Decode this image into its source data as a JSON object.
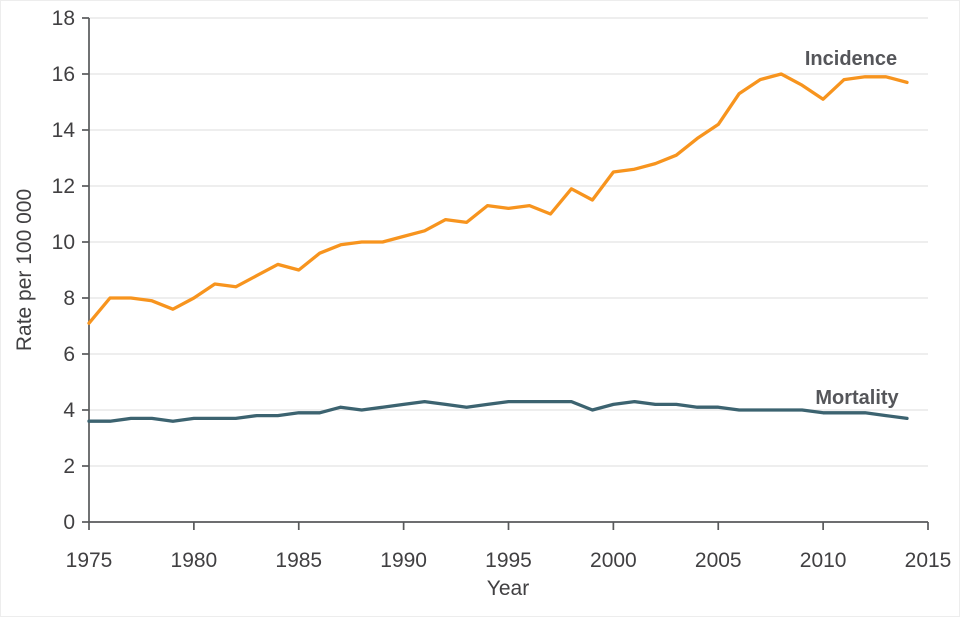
{
  "figure": {
    "description": "Line chart of incidence and mortality rates per 100 000 by year, 1975-2014"
  },
  "chart_data": {
    "type": "line",
    "title": "",
    "xlabel": "Year",
    "ylabel": "Rate per 100 000",
    "xlim": [
      1975,
      2015
    ],
    "ylim": [
      0,
      18
    ],
    "xticks": [
      1975,
      1980,
      1985,
      1990,
      1995,
      2000,
      2005,
      2010,
      2015
    ],
    "yticks": [
      0,
      2,
      4,
      6,
      8,
      10,
      12,
      14,
      16,
      18
    ],
    "grid": "horizontal",
    "legend": "inline-end-labels",
    "x": [
      1975,
      1976,
      1977,
      1978,
      1979,
      1980,
      1981,
      1982,
      1983,
      1984,
      1985,
      1986,
      1987,
      1988,
      1989,
      1990,
      1991,
      1992,
      1993,
      1994,
      1995,
      1996,
      1997,
      1998,
      1999,
      2000,
      2001,
      2002,
      2003,
      2004,
      2005,
      2006,
      2007,
      2008,
      2009,
      2010,
      2011,
      2012,
      2013,
      2014
    ],
    "series": [
      {
        "name": "Incidence",
        "color": "#F7941E",
        "values": [
          7.1,
          8.0,
          8.0,
          7.9,
          7.6,
          8.0,
          8.5,
          8.4,
          8.8,
          9.2,
          9.0,
          9.6,
          9.9,
          10.0,
          10.0,
          10.2,
          10.4,
          10.8,
          10.7,
          11.3,
          11.2,
          11.3,
          11.0,
          11.9,
          11.5,
          12.5,
          12.6,
          12.8,
          13.1,
          13.7,
          14.2,
          15.3,
          15.8,
          16.0,
          15.6,
          15.1,
          15.8,
          15.9,
          15.9,
          15.7
        ]
      },
      {
        "name": "Mortality",
        "color": "#3C6370",
        "values": [
          3.6,
          3.6,
          3.7,
          3.7,
          3.6,
          3.7,
          3.7,
          3.7,
          3.8,
          3.8,
          3.9,
          3.9,
          4.1,
          4.0,
          4.1,
          4.2,
          4.3,
          4.2,
          4.1,
          4.2,
          4.3,
          4.3,
          4.3,
          4.3,
          4.0,
          4.2,
          4.3,
          4.2,
          4.2,
          4.1,
          4.1,
          4.0,
          4.0,
          4.0,
          4.0,
          3.9,
          3.9,
          3.9,
          3.8,
          3.7
        ]
      }
    ]
  },
  "colors": {
    "incidence_line": "#F7941E",
    "mortality_line": "#3C6370",
    "gridline": "#E4E4E4",
    "axis": "#58595B",
    "text": "#414042",
    "series_label_text": "#55565a",
    "background": "#FFFFFF"
  }
}
